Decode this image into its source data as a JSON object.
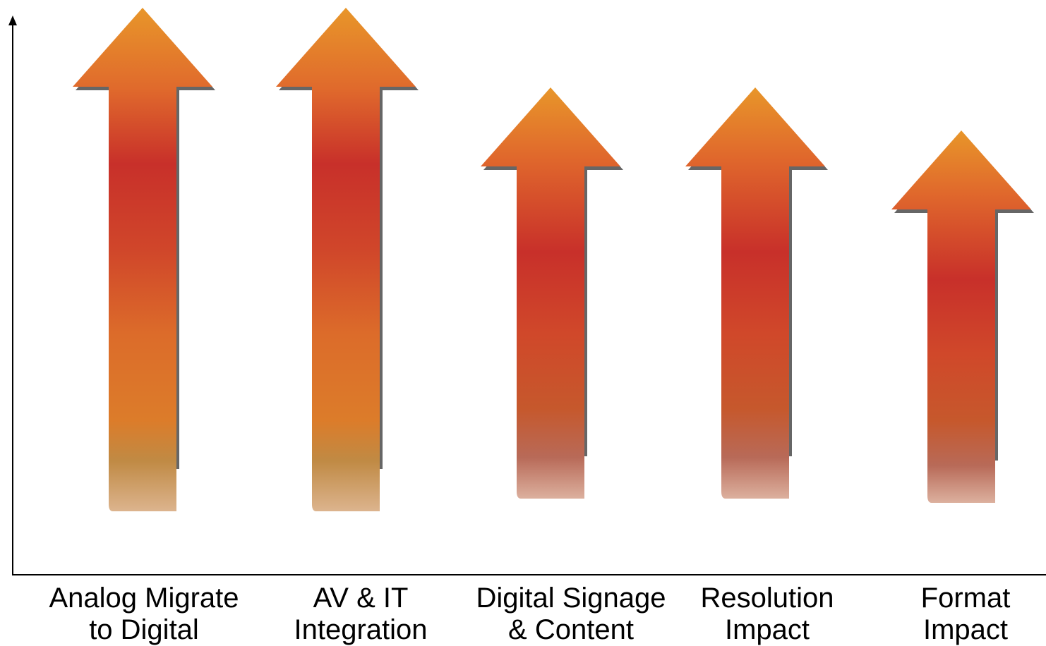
{
  "chart_data": {
    "type": "bar",
    "categories": [
      [
        "Analog Migrate",
        "to Digital"
      ],
      [
        "AV & IT",
        "Integration"
      ],
      [
        "Digital Signage",
        "& Content"
      ],
      [
        "Resolution",
        "Impact"
      ],
      [
        "Format",
        "Impact"
      ]
    ],
    "values": [
      100,
      100,
      78,
      78,
      66
    ],
    "ylim": [
      0,
      110
    ],
    "title": "",
    "xlabel": "",
    "ylabel": "",
    "grid": false,
    "legend": "none",
    "mark_style": "upward arrow",
    "colors": {
      "arrow_tip": "#e8902a",
      "arrow_mid": "#c8302a",
      "arrow_lower": "#dd7a2a",
      "arrow_base": "#d8b08a",
      "shadow": "#666666",
      "axis": "#000000"
    }
  }
}
